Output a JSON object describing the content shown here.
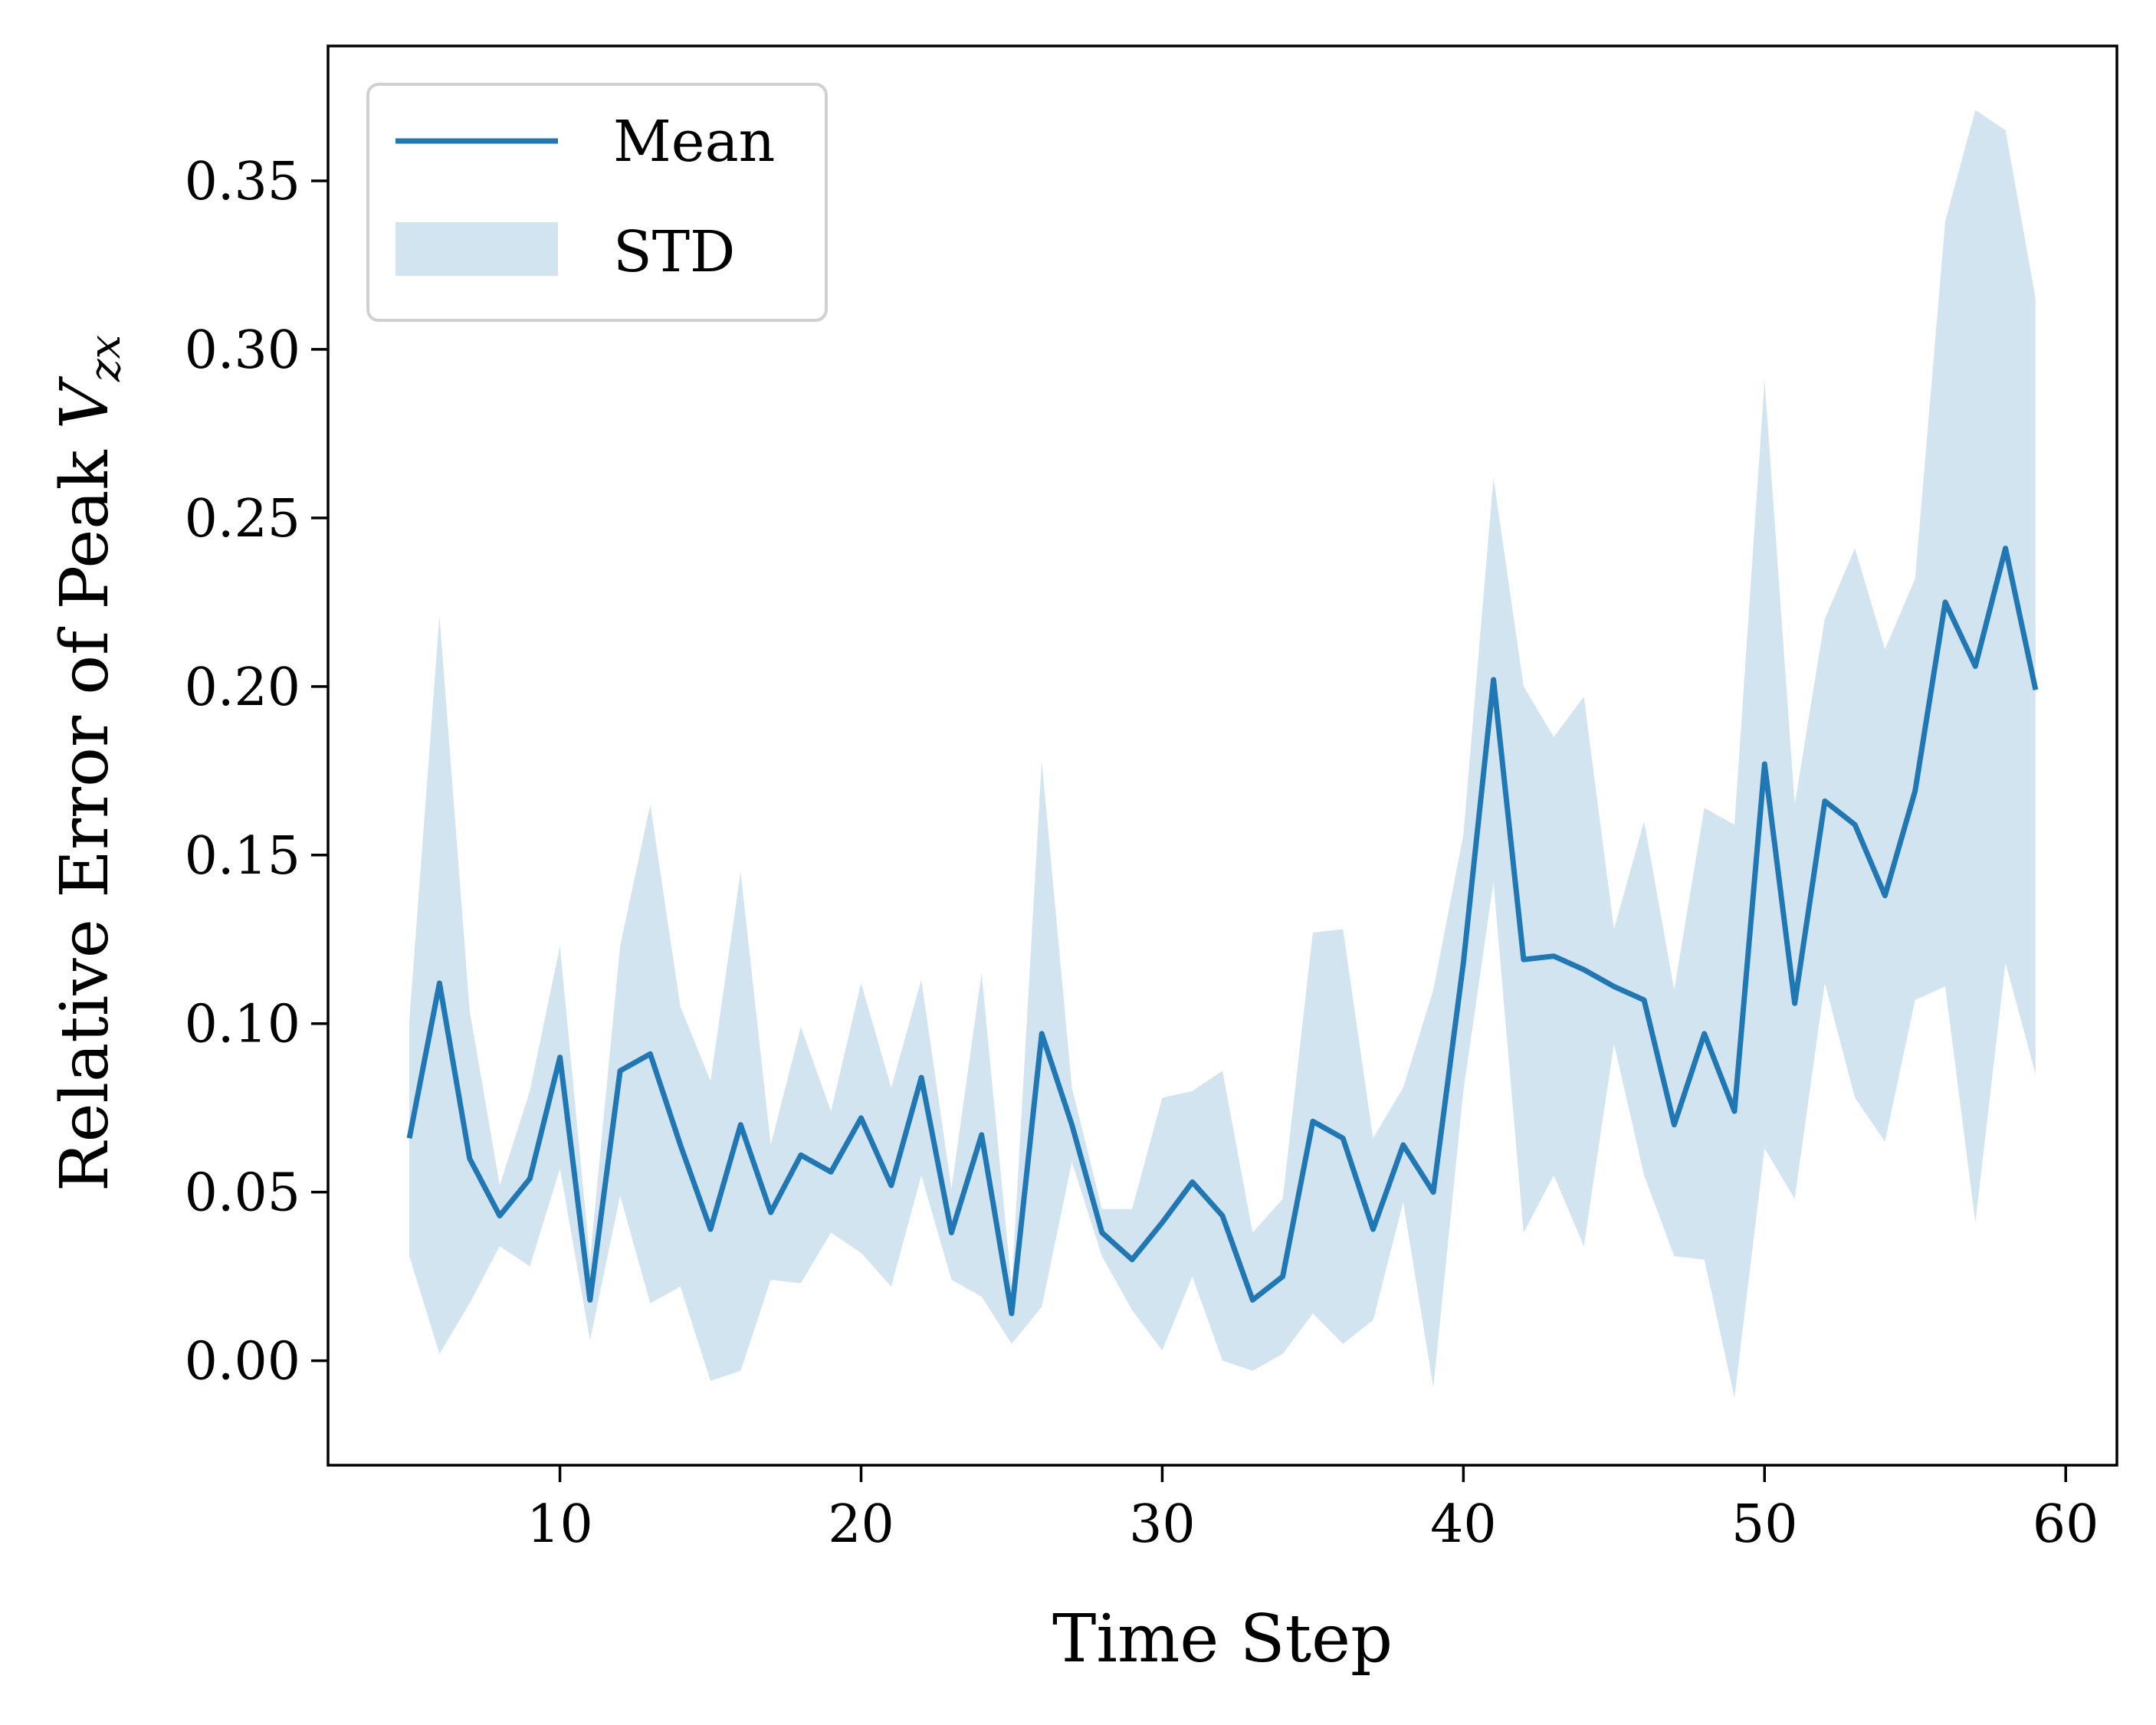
{
  "chart_data": {
    "type": "line",
    "xlabel": "Time Step",
    "ylabel": {
      "text": "Relative Error of Peak ",
      "symbol": "V",
      "subscript": "zx"
    },
    "xlim": [
      2.3,
      61.7
    ],
    "ylim": [
      -0.031,
      0.39
    ],
    "xticks": [
      10,
      20,
      30,
      40,
      50,
      60
    ],
    "yticks": [
      0.0,
      0.05,
      0.1,
      0.15,
      0.2,
      0.25,
      0.3,
      0.35
    ],
    "xtick_labels": [
      "10",
      "20",
      "30",
      "40",
      "50",
      "60"
    ],
    "ytick_labels": [
      "0.00",
      "0.05",
      "0.10",
      "0.15",
      "0.20",
      "0.25",
      "0.30",
      "0.35"
    ],
    "grid": false,
    "legend": {
      "position": "top-left",
      "entries": [
        {
          "label": "Mean",
          "kind": "line"
        },
        {
          "label": "STD",
          "kind": "band"
        }
      ]
    },
    "colors": {
      "mean": "#1f77b4",
      "std_band": "#1f77b4",
      "std_alpha": 0.2
    },
    "x": [
      5,
      6,
      7,
      8,
      9,
      10,
      11,
      12,
      13,
      14,
      15,
      16,
      17,
      18,
      19,
      20,
      21,
      22,
      23,
      24,
      25,
      26,
      27,
      28,
      29,
      30,
      31,
      32,
      33,
      34,
      35,
      36,
      37,
      38,
      39,
      40,
      41,
      42,
      43,
      44,
      45,
      46,
      47,
      48,
      49,
      50,
      51,
      52,
      53,
      54,
      55,
      56,
      57,
      58,
      59
    ],
    "series": [
      {
        "name": "Mean",
        "values": [
          0.066,
          0.112,
          0.06,
          0.043,
          0.054,
          0.09,
          0.018,
          0.086,
          0.091,
          0.064,
          0.039,
          0.07,
          0.044,
          0.061,
          0.056,
          0.072,
          0.052,
          0.084,
          0.038,
          0.067,
          0.014,
          0.097,
          0.07,
          0.038,
          0.03,
          0.041,
          0.053,
          0.043,
          0.018,
          0.025,
          0.071,
          0.066,
          0.039,
          0.064,
          0.05,
          0.118,
          0.202,
          0.119,
          0.12,
          0.116,
          0.111,
          0.107,
          0.07,
          0.097,
          0.074,
          0.177,
          0.106,
          0.166,
          0.159,
          0.138,
          0.169,
          0.225,
          0.206,
          0.241,
          0.199
        ]
      },
      {
        "name": "STD",
        "upper": [
          0.101,
          0.221,
          0.104,
          0.052,
          0.08,
          0.123,
          0.03,
          0.123,
          0.165,
          0.105,
          0.083,
          0.145,
          0.064,
          0.099,
          0.074,
          0.112,
          0.081,
          0.113,
          0.051,
          0.115,
          0.022,
          0.178,
          0.081,
          0.045,
          0.045,
          0.078,
          0.08,
          0.086,
          0.038,
          0.048,
          0.127,
          0.128,
          0.066,
          0.081,
          0.11,
          0.156,
          0.262,
          0.2,
          0.185,
          0.197,
          0.128,
          0.16,
          0.11,
          0.164,
          0.159,
          0.291,
          0.165,
          0.22,
          0.241,
          0.211,
          0.232,
          0.338,
          0.371,
          0.365,
          0.315
        ],
        "lower": [
          0.031,
          0.002,
          0.017,
          0.034,
          0.028,
          0.057,
          0.006,
          0.049,
          0.017,
          0.022,
          -0.006,
          -0.003,
          0.024,
          0.023,
          0.038,
          0.032,
          0.022,
          0.055,
          0.024,
          0.019,
          0.005,
          0.016,
          0.059,
          0.031,
          0.015,
          0.003,
          0.025,
          0.0,
          -0.003,
          0.002,
          0.014,
          0.005,
          0.012,
          0.047,
          -0.008,
          0.08,
          0.142,
          0.038,
          0.055,
          0.034,
          0.094,
          0.055,
          0.031,
          0.03,
          -0.011,
          0.063,
          0.048,
          0.112,
          0.078,
          0.065,
          0.107,
          0.111,
          0.041,
          0.118,
          0.085
        ]
      }
    ]
  }
}
